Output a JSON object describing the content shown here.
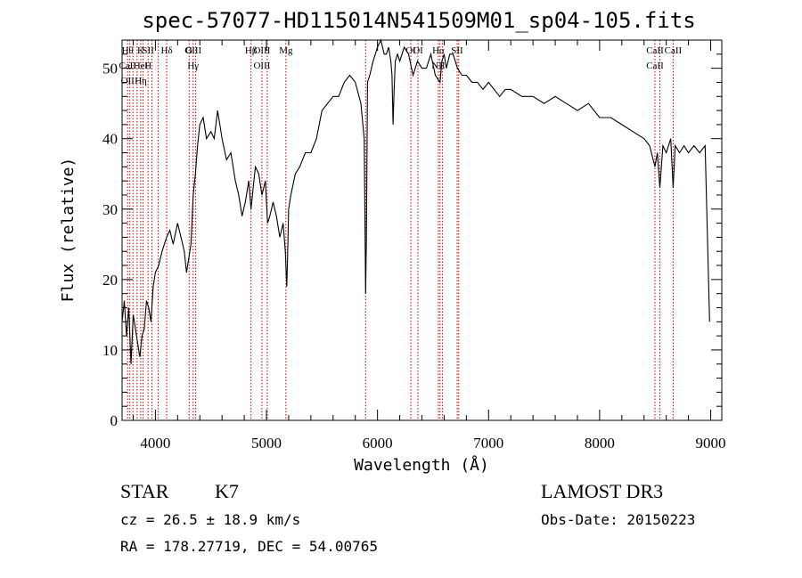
{
  "chart_data": {
    "type": "line",
    "title": "spec-57077-HD115014N541509M01_sp04-105.fits",
    "xlabel": "Wavelength (Å)",
    "ylabel": "Flux (relative)",
    "xlim": [
      3700,
      9100
    ],
    "ylim": [
      0,
      54
    ],
    "xticks": [
      4000,
      5000,
      6000,
      7000,
      8000,
      9000
    ],
    "yticks": [
      0,
      10,
      20,
      30,
      40,
      50
    ],
    "grid": false,
    "series": [
      {
        "x": [
          3700,
          3720,
          3740,
          3760,
          3780,
          3800,
          3820,
          3840,
          3860,
          3880,
          3900,
          3920,
          3940,
          3960,
          3980,
          4000,
          4030,
          4060,
          4100,
          4130,
          4160,
          4200,
          4230,
          4260,
          4280,
          4300,
          4320,
          4340,
          4360,
          4380,
          4400,
          4430,
          4460,
          4500,
          4530,
          4560,
          4600,
          4640,
          4680,
          4720,
          4750,
          4780,
          4810,
          4840,
          4861,
          4880,
          4900,
          4930,
          4960,
          4990,
          5010,
          5030,
          5060,
          5090,
          5120,
          5150,
          5170,
          5183,
          5190,
          5200,
          5220,
          5260,
          5300,
          5350,
          5400,
          5450,
          5500,
          5550,
          5600,
          5650,
          5700,
          5750,
          5800,
          5850,
          5880,
          5893,
          5900,
          5910,
          5930,
          5960,
          6000,
          6030,
          6060,
          6080,
          6100,
          6120,
          6130,
          6140,
          6150,
          6160,
          6180,
          6200,
          6240,
          6280,
          6320,
          6360,
          6400,
          6440,
          6480,
          6520,
          6563,
          6580,
          6600,
          6620,
          6650,
          6680,
          6700,
          6720,
          6760,
          6800,
          6850,
          6900,
          6950,
          7000,
          7050,
          7100,
          7150,
          7200,
          7300,
          7400,
          7500,
          7600,
          7700,
          7800,
          7900,
          8000,
          8100,
          8200,
          8300,
          8400,
          8450,
          8498,
          8520,
          8542,
          8570,
          8600,
          8640,
          8662,
          8680,
          8720,
          8760,
          8800,
          8850,
          8900,
          8950,
          8990
        ],
        "y": [
          14,
          17,
          12,
          16,
          8,
          15,
          13,
          11,
          9,
          12,
          13,
          17,
          16,
          14,
          19,
          21,
          22,
          24,
          26,
          27,
          25,
          28,
          26,
          24,
          21,
          23,
          25,
          32,
          35,
          39,
          42,
          43,
          40,
          41,
          40,
          44,
          40,
          37,
          38,
          34,
          32,
          29,
          31,
          34,
          30,
          33,
          36,
          35,
          32,
          34,
          28,
          29,
          31,
          29,
          26,
          28,
          24,
          19,
          23,
          30,
          32,
          35,
          36,
          38,
          38,
          40,
          44,
          45,
          46,
          46,
          48,
          49,
          48,
          45,
          40,
          18,
          26,
          48,
          49,
          51,
          53,
          54,
          52,
          52,
          53,
          51,
          49,
          42,
          47,
          51,
          52,
          51,
          53,
          52,
          49,
          51,
          50,
          50,
          52,
          49,
          48,
          51,
          52,
          50,
          52,
          52,
          51,
          50,
          49,
          49,
          48,
          48,
          47,
          48,
          47,
          46,
          47,
          47,
          46,
          46,
          45,
          46,
          45,
          44,
          45,
          43,
          43,
          42,
          41,
          40,
          39,
          36,
          38,
          33,
          39,
          38,
          40,
          33,
          39,
          38,
          39,
          38,
          39,
          38,
          39,
          14
        ]
      }
    ],
    "lines": [
      {
        "w": 3750,
        "labels": [
          "Hθ",
          "CaII",
          "OII"
        ]
      },
      {
        "w": 3770,
        "labels": []
      },
      {
        "w": 3798,
        "labels": []
      },
      {
        "w": 3835,
        "labels": []
      },
      {
        "w": 3868,
        "labels": [
          "K",
          "HeI",
          "Hη"
        ]
      },
      {
        "w": 3889,
        "labels": []
      },
      {
        "w": 3934,
        "labels": [
          "SII",
          "H"
        ]
      },
      {
        "w": 3968,
        "labels": []
      },
      {
        "w": 4026,
        "labels": []
      },
      {
        "w": 4102,
        "labels": [
          "Hδ"
        ]
      },
      {
        "w": 4304,
        "labels": [
          "G"
        ]
      },
      {
        "w": 4340,
        "labels": [
          "OIII",
          "Hγ"
        ]
      },
      {
        "w": 4363,
        "labels": []
      },
      {
        "w": 4861,
        "labels": [
          "Hβ"
        ]
      },
      {
        "w": 4959,
        "labels": [
          "OIII",
          "OIII"
        ]
      },
      {
        "w": 5007,
        "labels": []
      },
      {
        "w": 5175,
        "labels": [
          "Mg"
        ]
      },
      {
        "w": 5893,
        "labels": []
      },
      {
        "w": 6300,
        "labels": [
          "OI"
        ]
      },
      {
        "w": 6364,
        "labels": [
          "OI"
        ]
      },
      {
        "w": 6548,
        "labels": [
          "Hα",
          "NII"
        ]
      },
      {
        "w": 6563,
        "labels": []
      },
      {
        "w": 6584,
        "labels": []
      },
      {
        "w": 6717,
        "labels": [
          "SII"
        ]
      },
      {
        "w": 6731,
        "labels": []
      },
      {
        "w": 8498,
        "labels": [
          "CaII",
          "CaII"
        ]
      },
      {
        "w": 8542,
        "labels": []
      },
      {
        "w": 8662,
        "labels": [
          "CaII"
        ]
      }
    ]
  },
  "info": {
    "object_type": "STAR",
    "spectral_class": "K7",
    "cz": "cz = 26.5 ± 18.9 km/s",
    "coords": "RA = 178.27719, DEC =  54.00765",
    "survey": "LAMOST DR3",
    "obs_date": "Obs-Date: 20150223"
  }
}
